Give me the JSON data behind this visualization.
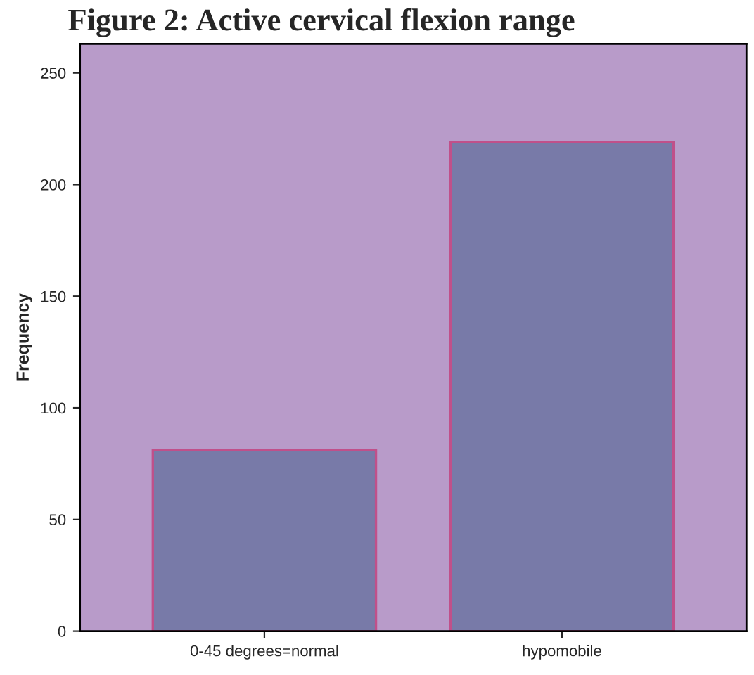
{
  "chart_data": {
    "type": "bar",
    "title": "Figure 2: Active cervical flexion range",
    "ylabel": "Frequency",
    "categories": [
      "0-45 degrees=normal",
      "hypomobile"
    ],
    "values": [
      81,
      219
    ],
    "color": "#787aa8",
    "ylim": [
      0,
      263
    ],
    "yticks": [
      0,
      50,
      100,
      150,
      200,
      250
    ],
    "grid": false
  }
}
